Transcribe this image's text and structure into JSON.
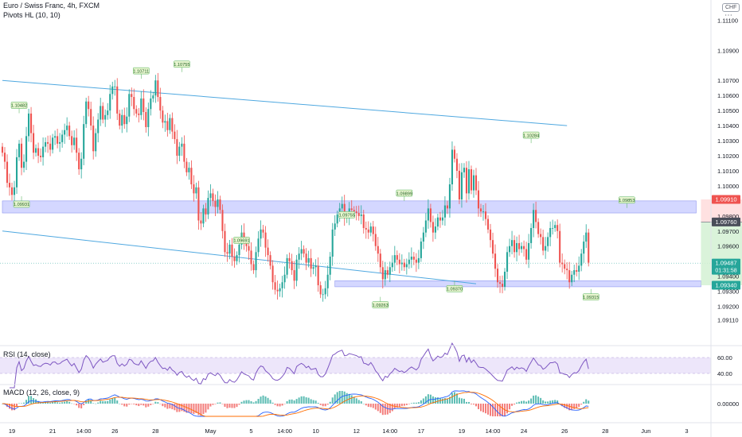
{
  "header": {
    "title": "Euro / Swiss Franc, 4h, FXCM",
    "indicator": "Pivots HL (10, 10)",
    "currency": "CHF",
    "more": "⋯"
  },
  "colors": {
    "up": "#26a69a",
    "down": "#ef5350",
    "trend": "#4fa8e0",
    "zone": "#c5caff",
    "rsi": "#7e57c2",
    "rsi_band": "#ede6fa",
    "macd": "#2962ff",
    "signal": "#ff6d00",
    "pivot_fill": "#e8f5d0",
    "pivot_border": "#4caf50",
    "stop": "#ffd7d7",
    "target": "#d3f1d3"
  },
  "chart_data": {
    "type": "candlestick",
    "symbol": "EURCHF",
    "timeframe": "4h",
    "source": "FXCM",
    "y_range": [
      1.0905,
      1.1116
    ],
    "y_ticks": [
      "1.11100",
      "1.10900",
      "1.10700",
      "1.10600",
      "1.10500",
      "1.10400",
      "1.10300",
      "1.10200",
      "1.10100",
      "1.10000",
      "1.09800",
      "1.09700",
      "1.09600",
      "1.09500",
      "1.09400",
      "1.09300",
      "1.09200",
      "1.09110"
    ],
    "y_tick_values": [
      1.111,
      1.109,
      1.107,
      1.106,
      1.105,
      1.104,
      1.103,
      1.102,
      1.101,
      1.1,
      1.098,
      1.097,
      1.096,
      1.095,
      1.094,
      1.093,
      1.092,
      1.0911
    ],
    "x_ticks": [
      {
        "i": 4,
        "label": "19"
      },
      {
        "i": 21,
        "label": "21"
      },
      {
        "i": 34,
        "label": "14:00"
      },
      {
        "i": 47,
        "label": "26"
      },
      {
        "i": 64,
        "label": "28"
      },
      {
        "i": 87,
        "label": "May"
      },
      {
        "i": 104,
        "label": "5"
      },
      {
        "i": 118,
        "label": "14:00"
      },
      {
        "i": 131,
        "label": "10"
      },
      {
        "i": 148,
        "label": "12"
      },
      {
        "i": 162,
        "label": "14:00"
      },
      {
        "i": 175,
        "label": "17"
      },
      {
        "i": 192,
        "label": "19"
      },
      {
        "i": 205,
        "label": "14:00"
      },
      {
        "i": 218,
        "label": "24"
      },
      {
        "i": 235,
        "label": "26"
      },
      {
        "i": 252,
        "label": "28"
      },
      {
        "i": 269,
        "label": "Jun"
      },
      {
        "i": 286,
        "label": "3"
      }
    ],
    "closes": [
      1.1022,
      1.1016,
      1.1002,
      1.0999,
      1.0994,
      1.0999,
      1.1019,
      1.1028,
      1.1012,
      1.1016,
      1.1033,
      1.1048,
      1.1035,
      1.1022,
      1.1025,
      1.102,
      1.1019,
      1.1026,
      1.1029,
      1.1028,
      1.1024,
      1.1032,
      1.1033,
      1.1028,
      1.1029,
      1.1034,
      1.1037,
      1.104,
      1.1033,
      1.1027,
      1.1032,
      1.1022,
      1.1011,
      1.1018,
      1.1041,
      1.1056,
      1.1051,
      1.104,
      1.1023,
      1.1035,
      1.1044,
      1.1053,
      1.1044,
      1.1047,
      1.105,
      1.1061,
      1.1066,
      1.1066,
      1.1048,
      1.104,
      1.1047,
      1.1041,
      1.1046,
      1.1061,
      1.1059,
      1.1051,
      1.1048,
      1.1047,
      1.1058,
      1.1049,
      1.1039,
      1.1051,
      1.1058,
      1.106,
      1.107,
      1.1059,
      1.105,
      1.1042,
      1.1043,
      1.1037,
      1.1045,
      1.1036,
      1.1031,
      1.102,
      1.1026,
      1.1028,
      1.1016,
      1.1009,
      1.1012,
      1.1001,
      1.0995,
      1.0999,
      1.0977,
      1.0975,
      1.0985,
      1.0981,
      1.0992,
      1.0995,
      1.099,
      1.0986,
      1.0991,
      1.0984,
      1.097,
      1.0956,
      1.0955,
      1.0961,
      1.0953,
      1.095,
      1.0954,
      1.0961,
      1.0969,
      1.0963,
      1.096,
      1.0957,
      1.0948,
      1.0944,
      1.0956,
      1.0965,
      1.0971,
      1.0969,
      1.0959,
      1.0954,
      1.0947,
      1.0936,
      1.0931,
      1.093,
      1.0932,
      1.0936,
      1.0941,
      1.0952,
      1.095,
      1.0944,
      1.0937,
      1.0951,
      1.0955,
      1.0958,
      1.0955,
      1.0949,
      1.0952,
      1.0945,
      1.0946,
      1.0947,
      1.0934,
      1.0928,
      1.0928,
      1.0932,
      1.0941,
      1.0953,
      1.0971,
      1.0975,
      1.0981,
      1.0985,
      1.0988,
      1.0979,
      1.098,
      1.0985,
      1.0984,
      1.0983,
      1.0982,
      1.098,
      1.0981,
      1.0972,
      1.0971,
      1.0969,
      1.0973,
      1.0968,
      1.096,
      1.0955,
      1.0946,
      1.0938,
      1.0944,
      1.0941,
      1.0946,
      1.0949,
      1.0954,
      1.0951,
      1.0948,
      1.0949,
      1.0946,
      1.0948,
      1.0951,
      1.0953,
      1.0951,
      1.0949,
      1.0952,
      1.0963,
      1.0969,
      1.0977,
      1.0985,
      1.0976,
      1.0969,
      1.0973,
      1.0979,
      1.0977,
      1.0979,
      1.0987,
      1.0985,
      1.1001,
      1.1024,
      1.1018,
      1.101,
      1.0991,
      1.1009,
      1.1012,
      1.0995,
      1.1011,
      1.0997,
      1.1007,
      1.0997,
      1.0985,
      1.0983,
      1.0983,
      1.0978,
      1.0971,
      1.0964,
      1.0955,
      1.0945,
      1.0936,
      1.0935,
      1.0933,
      1.0943,
      1.0956,
      1.096,
      1.0964,
      1.0956,
      1.0962,
      1.0958,
      1.096,
      1.0958,
      1.0951,
      1.0962,
      1.0972,
      1.0984,
      1.0976,
      1.0968,
      1.0966,
      1.0957,
      1.096,
      1.0966,
      1.0972,
      1.0972,
      1.0974,
      1.097,
      1.0949,
      1.0948,
      1.0945,
      1.0944,
      1.0936,
      1.0941,
      1.0944,
      1.0943,
      1.0947,
      1.0955,
      1.0963,
      1.0969,
      1.0949
    ],
    "overlays": {
      "trendlines": [
        {
          "from": [
            0,
            1.107
          ],
          "to": [
            236,
            1.104
          ]
        },
        {
          "from": [
            0,
            1.097
          ],
          "to": [
            198,
            1.0935
          ]
        }
      ],
      "zones": [
        {
          "x0": 0,
          "x1": 290,
          "y0": 1.0982,
          "y1": 1.099
        },
        {
          "x0": 139,
          "x1": 292,
          "y0": 1.0933,
          "y1": 1.0937
        }
      ],
      "pivot_labels": [
        {
          "i": 7,
          "price": 1.10482,
          "text": "1.10482",
          "pos": "high"
        },
        {
          "i": 8,
          "price": 1.09931,
          "text": "1.09931",
          "pos": "low"
        },
        {
          "i": 58,
          "price": 1.10711,
          "text": "1.10711",
          "pos": "high"
        },
        {
          "i": 75,
          "price": 1.10755,
          "text": "1.10755",
          "pos": "high"
        },
        {
          "i": 100,
          "price": 1.09691,
          "text": "1.09691",
          "pos": "low"
        },
        {
          "i": 144,
          "price": 1.09755,
          "text": "1.09755",
          "pos": "high"
        },
        {
          "i": 158,
          "price": 1.09263,
          "text": "1.09263",
          "pos": "low"
        },
        {
          "i": 168,
          "price": 1.09899,
          "text": "1.09899",
          "pos": "high"
        },
        {
          "i": 189,
          "price": 1.0937,
          "text": "1.09370",
          "pos": "low"
        },
        {
          "i": 221,
          "price": 1.10284,
          "text": "1.10284",
          "pos": "high"
        },
        {
          "i": 246,
          "price": 1.09315,
          "text": "1.09315",
          "pos": "low"
        },
        {
          "i": 261,
          "price": 1.09853,
          "text": "1.09853",
          "pos": "high"
        }
      ],
      "position": {
        "x0": 292,
        "x1": 330,
        "entry": 1.0976,
        "stop": 1.0991,
        "target": 1.0934
      }
    },
    "price_badges": [
      {
        "price": 1.0991,
        "text": "1.09910",
        "color": "#ef5350"
      },
      {
        "price": 1.0976,
        "text": "1.09760",
        "color": "#4a4e5a"
      },
      {
        "price": 1.09487,
        "text": "1.09487",
        "sub": "01:31:58",
        "color": "#26a69a"
      },
      {
        "price": 1.0934,
        "text": "1.09340",
        "color": "#26a69a"
      }
    ],
    "rsi": {
      "label": "RSI (14, close)",
      "upper": 60.0,
      "lower": 40.0,
      "ticks": [
        "60.00",
        "40.00"
      ]
    },
    "macd": {
      "label": "MACD (12, 26, close, 9)",
      "zero": "0.00000"
    }
  }
}
